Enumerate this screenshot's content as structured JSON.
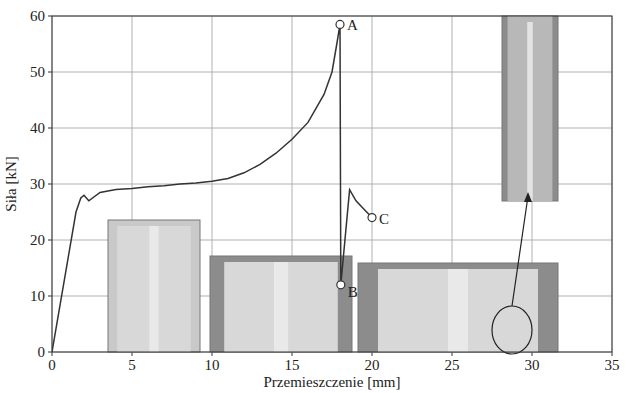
{
  "chart_data": {
    "type": "line",
    "x_label": "Przemieszczenie [mm]",
    "y_label": "Siła [kN]",
    "x": [
      0,
      1.5,
      1.8,
      2.0,
      2.3,
      3,
      4,
      5,
      6,
      7,
      8,
      9,
      10,
      11,
      12,
      13,
      14,
      15,
      16,
      17,
      17.5,
      17.8,
      18.0,
      18.05,
      18.6,
      19.0,
      19.5,
      20.0
    ],
    "series": [
      {
        "name": "Siła",
        "color": "#333333",
        "values": [
          0,
          25,
          27.5,
          28,
          27,
          28.5,
          29,
          29.2,
          29.5,
          29.7,
          30,
          30.2,
          30.5,
          31,
          32,
          33.5,
          35.5,
          38,
          41,
          46,
          50,
          55,
          58.5,
          12,
          29,
          27,
          25.5,
          24
        ]
      }
    ],
    "annotations": [
      {
        "text": "A",
        "x": 18.0,
        "y": 58.5
      },
      {
        "text": "B",
        "x": 18.05,
        "y": 12
      },
      {
        "text": "C",
        "x": 20.0,
        "y": 24
      }
    ],
    "xlim": [
      0,
      35
    ],
    "xticks": [
      0,
      5,
      10,
      15,
      20,
      25,
      30,
      35
    ],
    "ylim": [
      0,
      60
    ],
    "yticks": [
      0,
      10,
      20,
      30,
      40,
      50,
      60
    ],
    "grid": true
  }
}
